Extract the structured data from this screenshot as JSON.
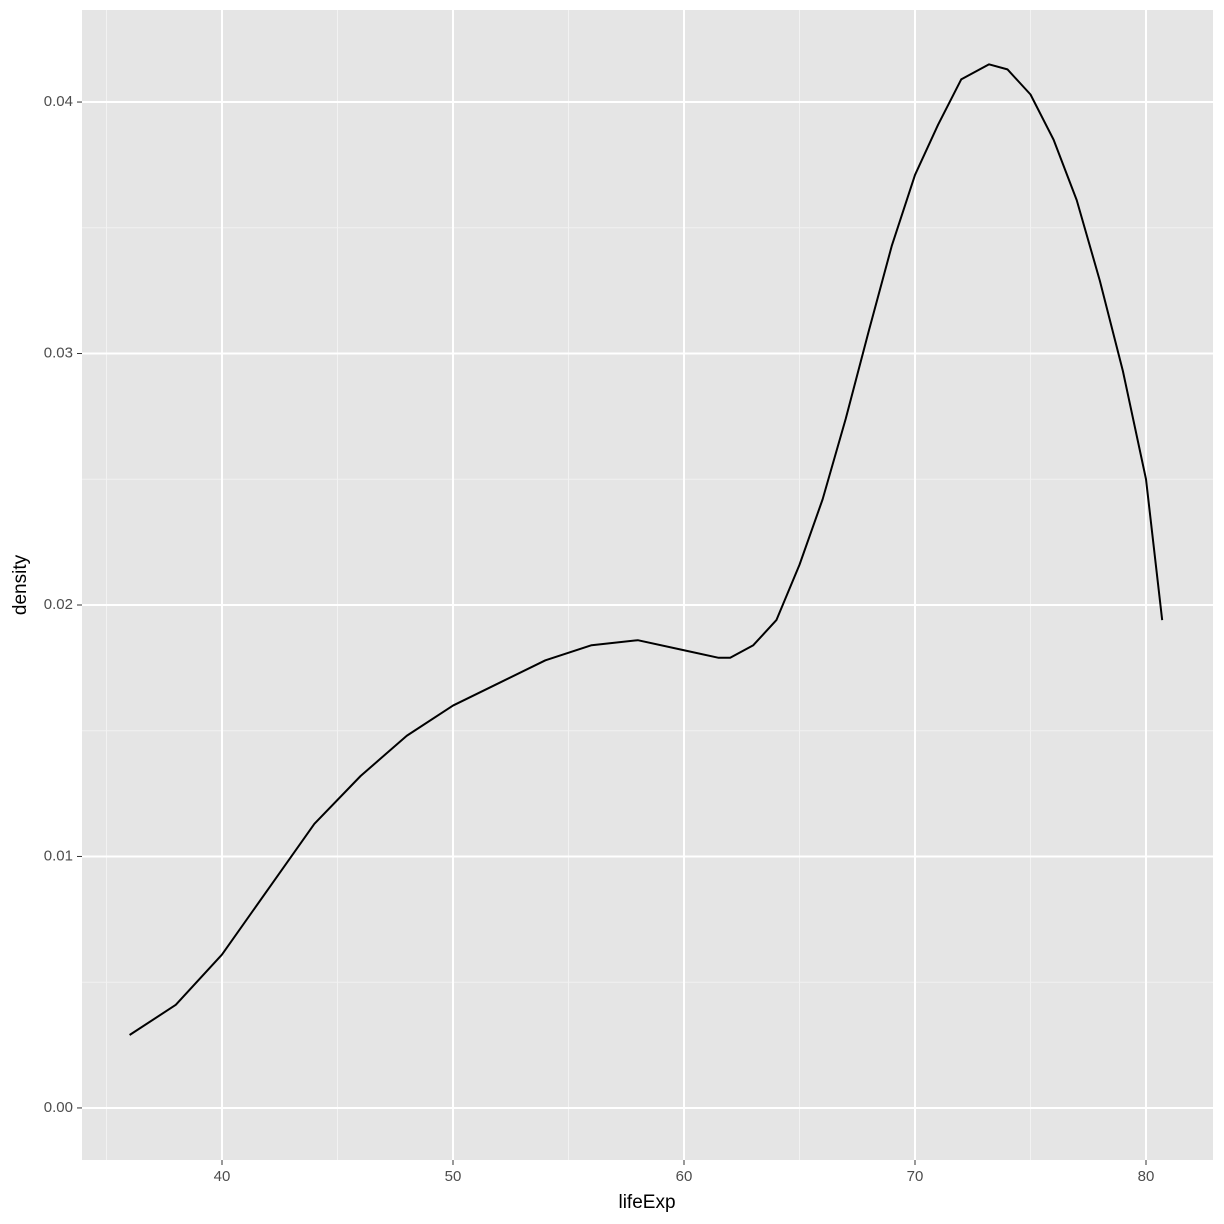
{
  "chart_data": {
    "type": "line",
    "x_label": "lifeExp",
    "y_label": "density",
    "x": [
      36,
      38,
      40,
      42,
      44,
      46,
      48,
      50,
      52,
      54,
      56,
      58,
      60,
      61.5,
      62,
      63,
      64,
      65,
      66,
      67,
      68,
      69,
      70,
      71,
      72,
      73.2,
      74,
      75,
      76,
      77,
      78,
      79,
      80,
      80.7
    ],
    "series": [
      {
        "color": "#000000",
        "values": [
          0.0029,
          0.0041,
          0.0061,
          0.0087,
          0.0113,
          0.0132,
          0.0148,
          0.016,
          0.0169,
          0.0178,
          0.0184,
          0.0186,
          0.0182,
          0.0179,
          0.0179,
          0.0184,
          0.0194,
          0.0216,
          0.0242,
          0.0274,
          0.0309,
          0.0343,
          0.0371,
          0.0391,
          0.0409,
          0.0415,
          0.0413,
          0.0403,
          0.0385,
          0.0361,
          0.0329,
          0.0293,
          0.025,
          0.0194
        ]
      }
    ],
    "xlim": [
      33.94,
      82.9
    ],
    "ylim": [
      -0.00207,
      0.04366
    ],
    "xticks": [
      40,
      50,
      60,
      70,
      80
    ],
    "yticks": [
      {
        "value": 0,
        "label": "0.00"
      },
      {
        "value": 0.01,
        "label": "0.01"
      },
      {
        "value": 0.02,
        "label": "0.02"
      },
      {
        "value": 0.03,
        "label": "0.03"
      },
      {
        "value": 0.04,
        "label": "0.04"
      }
    ],
    "x_minor_breaks": [
      35,
      45,
      55,
      65,
      75
    ],
    "y_minor_breaks": [
      0.005,
      0.015,
      0.025,
      0.035
    ],
    "grid": true,
    "panel_color": "#e5e5e5"
  }
}
